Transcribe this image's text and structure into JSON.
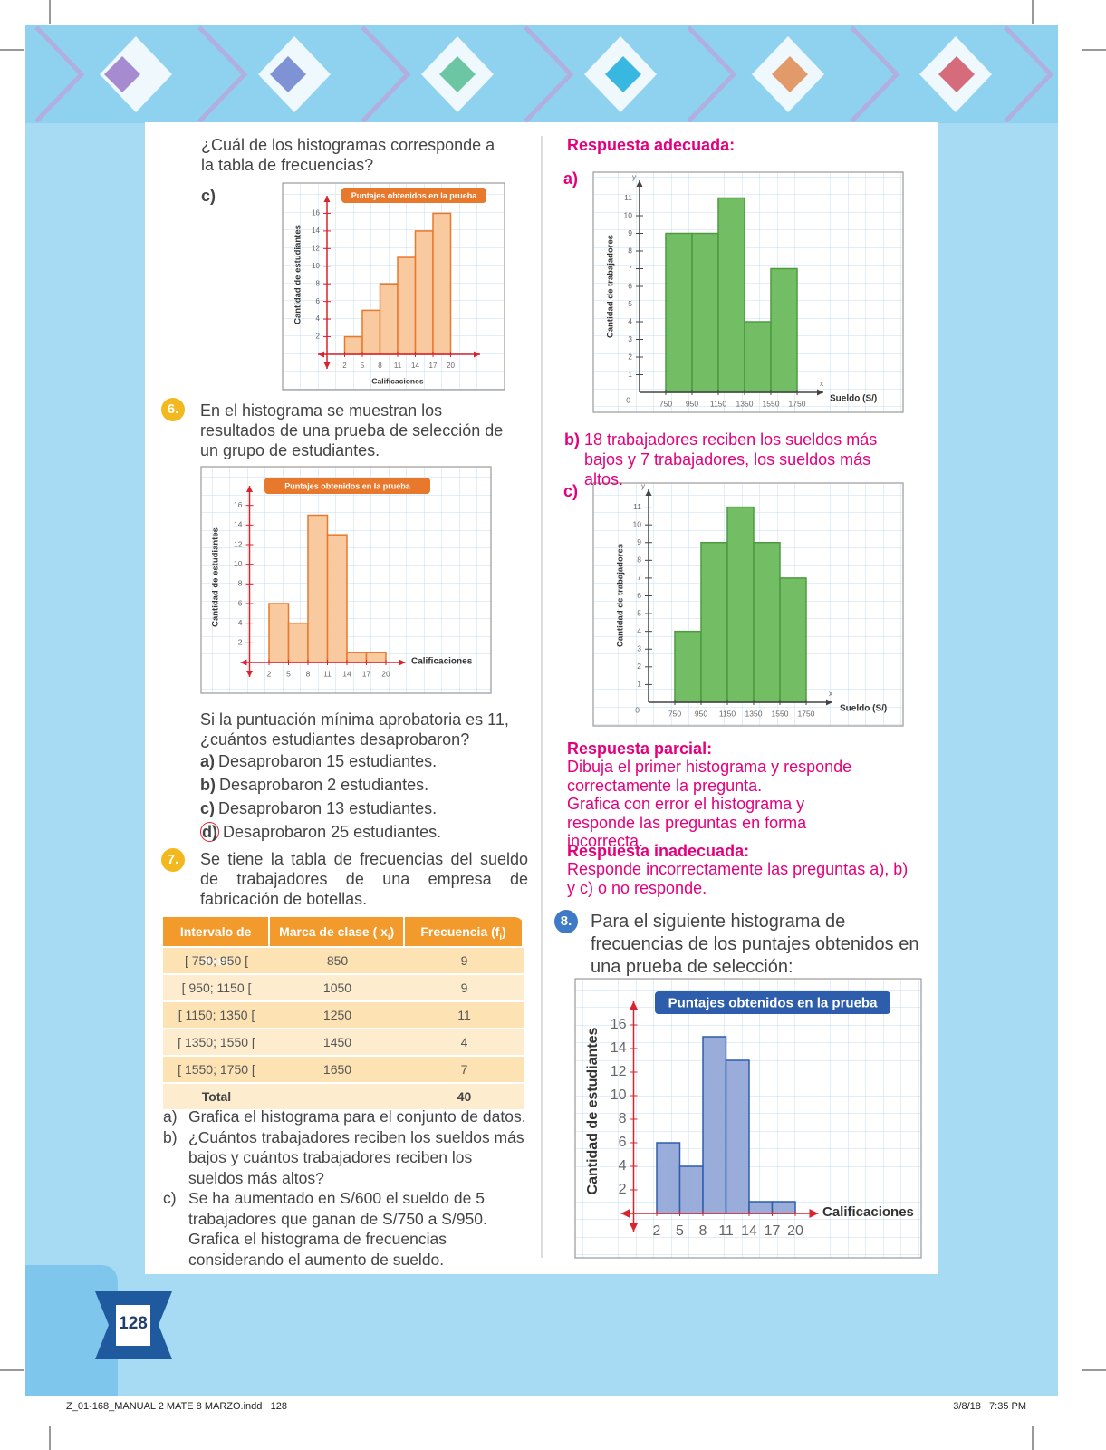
{
  "page_number": "128",
  "footer": {
    "file": "Z_01-168_MANUAL 2 MATE 8 MARZO.indd   128",
    "date": "3/8/18   7:35 PM"
  },
  "left": {
    "intro": "¿Cuál de los histogramas corresponde a la tabla de frecuencias?",
    "option_c": "c)",
    "q6": {
      "number": "6.",
      "text": "En el histograma se muestran los resultados de una prueba de selección de un grupo de estudiantes.",
      "question": "Si la puntuación mínima aprobatoria es 11, ¿cuántos estudiantes desaprobaron?",
      "options": [
        {
          "letter": "a)",
          "text": "Desaprobaron 15 estudiantes."
        },
        {
          "letter": "b)",
          "text": "Desaprobaron 2 estudiantes."
        },
        {
          "letter": "c)",
          "text": "Desaprobaron 13 estudiantes."
        },
        {
          "letter": "d)",
          "text": "Desaprobaron 25 estudiantes."
        }
      ]
    },
    "q7": {
      "number": "7.",
      "text": "Se tiene la tabla de frecuencias del sueldo de trabajadores de una empresa de fabricación de botellas.",
      "table": {
        "headers": [
          {
            "text": "Intervalo de clase"
          },
          {
            "text": "Marca de clase ( x",
            "sub": "i",
            "close": ")"
          },
          {
            "text": "Frecuencia (f",
            "sub": "i",
            "close": ")"
          }
        ],
        "rows": [
          [
            "[ 750; 950 [",
            "850",
            "9"
          ],
          [
            "[ 950; 1150 [",
            "1050",
            "9"
          ],
          [
            "[ 1150; 1350 [",
            "1250",
            "11"
          ],
          [
            "[ 1350; 1550 [",
            "1450",
            "4"
          ],
          [
            "[ 1550; 1750 [",
            "1650",
            "7"
          ]
        ],
        "total": {
          "label": "Total",
          "value": "40"
        }
      },
      "items": [
        {
          "letter": "a)",
          "text": "Grafica el histograma para el conjunto de datos."
        },
        {
          "letter": "b)",
          "text": "¿Cuántos trabajadores reciben los sueldos más bajos y cuántos trabajadores reciben los sueldos más altos?"
        },
        {
          "letter": "c)",
          "text": "Se ha aumentado en S/600 el sueldo de 5 trabajadores que ganan de S/750 a S/950. Grafica el histograma de frecuencias considerando el aumento de sueldo."
        }
      ]
    }
  },
  "right": {
    "adequate_title": "Respuesta adecuada:",
    "a_letter": "a)",
    "b_letter": "b)",
    "b_text": "18 trabajadores reciben los sueldos más bajos y 7 trabajadores, los sueldos más altos.",
    "c_letter": "c)",
    "partial_title": "Respuesta parcial:",
    "partial_lines": [
      "Dibuja el primer histograma y responde correctamente la pregunta.",
      "Grafica con error el histograma y responde las preguntas en forma incorrecta."
    ],
    "inadequate_title": "Respuesta inadecuada:",
    "inadequate_text": "Responde incorrectamente las preguntas a), b) y c) o no responde.",
    "q8": {
      "number": "8.",
      "text": "Para el siguiente histograma de frecuencias de los puntajes obtenidos en una prueba de selección:"
    }
  },
  "chart_data": [
    {
      "type": "histogram",
      "title": "Puntajes obtenidos en la prueba",
      "x_label": "Calificaciones",
      "y_label": "Cantidad de estudiantes",
      "bins": [
        2,
        5,
        8,
        11,
        14,
        17,
        20
      ],
      "values": [
        2,
        5,
        8,
        11,
        14,
        16
      ],
      "color": "#f9c79a",
      "edgecolor": "#e8782c",
      "xlim": [
        -1,
        23
      ],
      "ylim": [
        0,
        18
      ],
      "xticks": [
        2,
        5,
        8,
        11,
        14,
        17,
        20
      ],
      "yticks": [
        2,
        4,
        6,
        8,
        10,
        12,
        14,
        16
      ],
      "grid": true
    },
    {
      "type": "histogram",
      "title": "Puntajes obtenidos en la prueba",
      "x_label": "Calificaciones",
      "y_label": "Cantidad de estudiantes",
      "bins": [
        2,
        5,
        8,
        11,
        14,
        17,
        20
      ],
      "values": [
        6,
        4,
        15,
        13,
        1,
        1
      ],
      "color": "#f9c79a",
      "edgecolor": "#e8782c",
      "xlim": [
        -1,
        23
      ],
      "ylim": [
        0,
        18
      ],
      "xticks": [
        2,
        5,
        8,
        11,
        14,
        17,
        20
      ],
      "yticks": [
        2,
        4,
        6,
        8,
        10,
        12,
        14,
        16
      ],
      "grid": true
    },
    {
      "type": "histogram",
      "x_label": "Sueldo (S/)",
      "y_label": "Cantidad de trabajadores",
      "x_letter": "x",
      "y_letter": "y",
      "bins": [
        750,
        950,
        1150,
        1350,
        1550,
        1750
      ],
      "values": [
        9,
        9,
        11,
        4,
        7
      ],
      "color": "#6cba5c",
      "edgecolor": "#4d9a41",
      "xlim": [
        550,
        1950
      ],
      "ylim": [
        0,
        12
      ],
      "xticks": [
        750,
        950,
        1150,
        1350,
        1550,
        1750
      ],
      "yticks": [
        0,
        1,
        2,
        3,
        4,
        5,
        6,
        7,
        8,
        9,
        10,
        11
      ],
      "grid": true
    },
    {
      "type": "histogram",
      "x_label": "Sueldo (S/)",
      "y_label": "Cantidad de trabajadores",
      "x_letter": "x",
      "y_letter": "y",
      "bins": [
        750,
        950,
        1150,
        1350,
        1550,
        1750
      ],
      "values": [
        4,
        9,
        11,
        9,
        7
      ],
      "color": "#6cba5c",
      "edgecolor": "#4d9a41",
      "xlim": [
        550,
        1950
      ],
      "ylim": [
        0,
        12
      ],
      "xticks": [
        750,
        950,
        1150,
        1350,
        1550,
        1750
      ],
      "yticks": [
        0,
        1,
        2,
        3,
        4,
        5,
        6,
        7,
        8,
        9,
        10,
        11
      ],
      "grid": true
    },
    {
      "type": "histogram",
      "title": "Puntajes obtenidos en la prueba",
      "x_label": "Calificaciones",
      "y_label": "Cantidad de estudiantes",
      "bins": [
        2,
        5,
        8,
        11,
        14,
        17,
        20
      ],
      "values": [
        6,
        4,
        15,
        13,
        1,
        1
      ],
      "color": "#94a8d8",
      "edgecolor": "#2e5dab",
      "xlim": [
        -1,
        23
      ],
      "ylim": [
        0,
        18
      ],
      "xticks": [
        2,
        5,
        8,
        11,
        14,
        17,
        20
      ],
      "yticks": [
        2,
        4,
        6,
        8,
        10,
        12,
        14,
        16
      ],
      "grid": true
    }
  ]
}
